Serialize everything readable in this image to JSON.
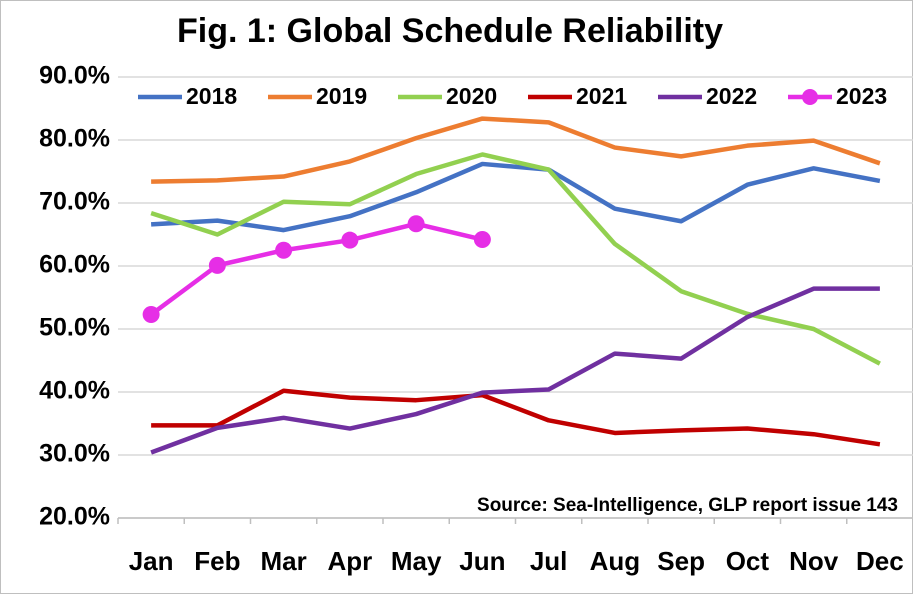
{
  "chart_data": {
    "type": "line",
    "title": "Fig. 1: Global Schedule Reliability",
    "annotation": "Source: Sea-Intelligence, GLP report issue 143",
    "categories": [
      "Jan",
      "Feb",
      "Mar",
      "Apr",
      "May",
      "Jun",
      "Jul",
      "Aug",
      "Sep",
      "Oct",
      "Nov",
      "Dec"
    ],
    "series": [
      {
        "name": "2018",
        "color": "#4472c4",
        "values": [
          66.6,
          67.2,
          65.7,
          67.9,
          71.7,
          76.2,
          75.3,
          69.1,
          67.1,
          72.9,
          75.5,
          73.5
        ]
      },
      {
        "name": "2019",
        "color": "#ed7d31",
        "values": [
          73.4,
          73.6,
          74.2,
          76.6,
          80.3,
          83.4,
          82.8,
          78.8,
          77.4,
          79.1,
          79.9,
          76.3
        ]
      },
      {
        "name": "2020",
        "color": "#92d050",
        "values": [
          68.4,
          65.0,
          70.2,
          69.8,
          74.6,
          77.7,
          75.3,
          63.5,
          56.0,
          52.4,
          50.0,
          44.5
        ]
      },
      {
        "name": "2021",
        "color": "#c00000",
        "values": [
          34.7,
          34.7,
          40.2,
          39.1,
          38.7,
          39.5,
          35.5,
          33.5,
          33.9,
          34.2,
          33.3,
          31.7
        ]
      },
      {
        "name": "2022",
        "color": "#7030a0",
        "values": [
          30.4,
          34.3,
          35.9,
          34.2,
          36.5,
          39.9,
          40.4,
          46.1,
          45.3,
          51.9,
          56.4,
          56.4
        ]
      },
      {
        "name": "2023",
        "color": "#e62ee6",
        "markers": true,
        "values": [
          52.3,
          60.1,
          62.5,
          64.1,
          66.7,
          64.2,
          null,
          null,
          null,
          null,
          null,
          null
        ]
      }
    ],
    "ylim": [
      20,
      90
    ],
    "yticks": [
      {
        "value": 20,
        "label": "20.0%"
      },
      {
        "value": 30,
        "label": "30.0%"
      },
      {
        "value": 40,
        "label": "40.0%"
      },
      {
        "value": 50,
        "label": "50.0%"
      },
      {
        "value": 60,
        "label": "60.0%"
      },
      {
        "value": 70,
        "label": "70.0%"
      },
      {
        "value": 80,
        "label": "80.0%"
      },
      {
        "value": 90,
        "label": "90.0%"
      }
    ],
    "grid": true,
    "legend": "top"
  }
}
